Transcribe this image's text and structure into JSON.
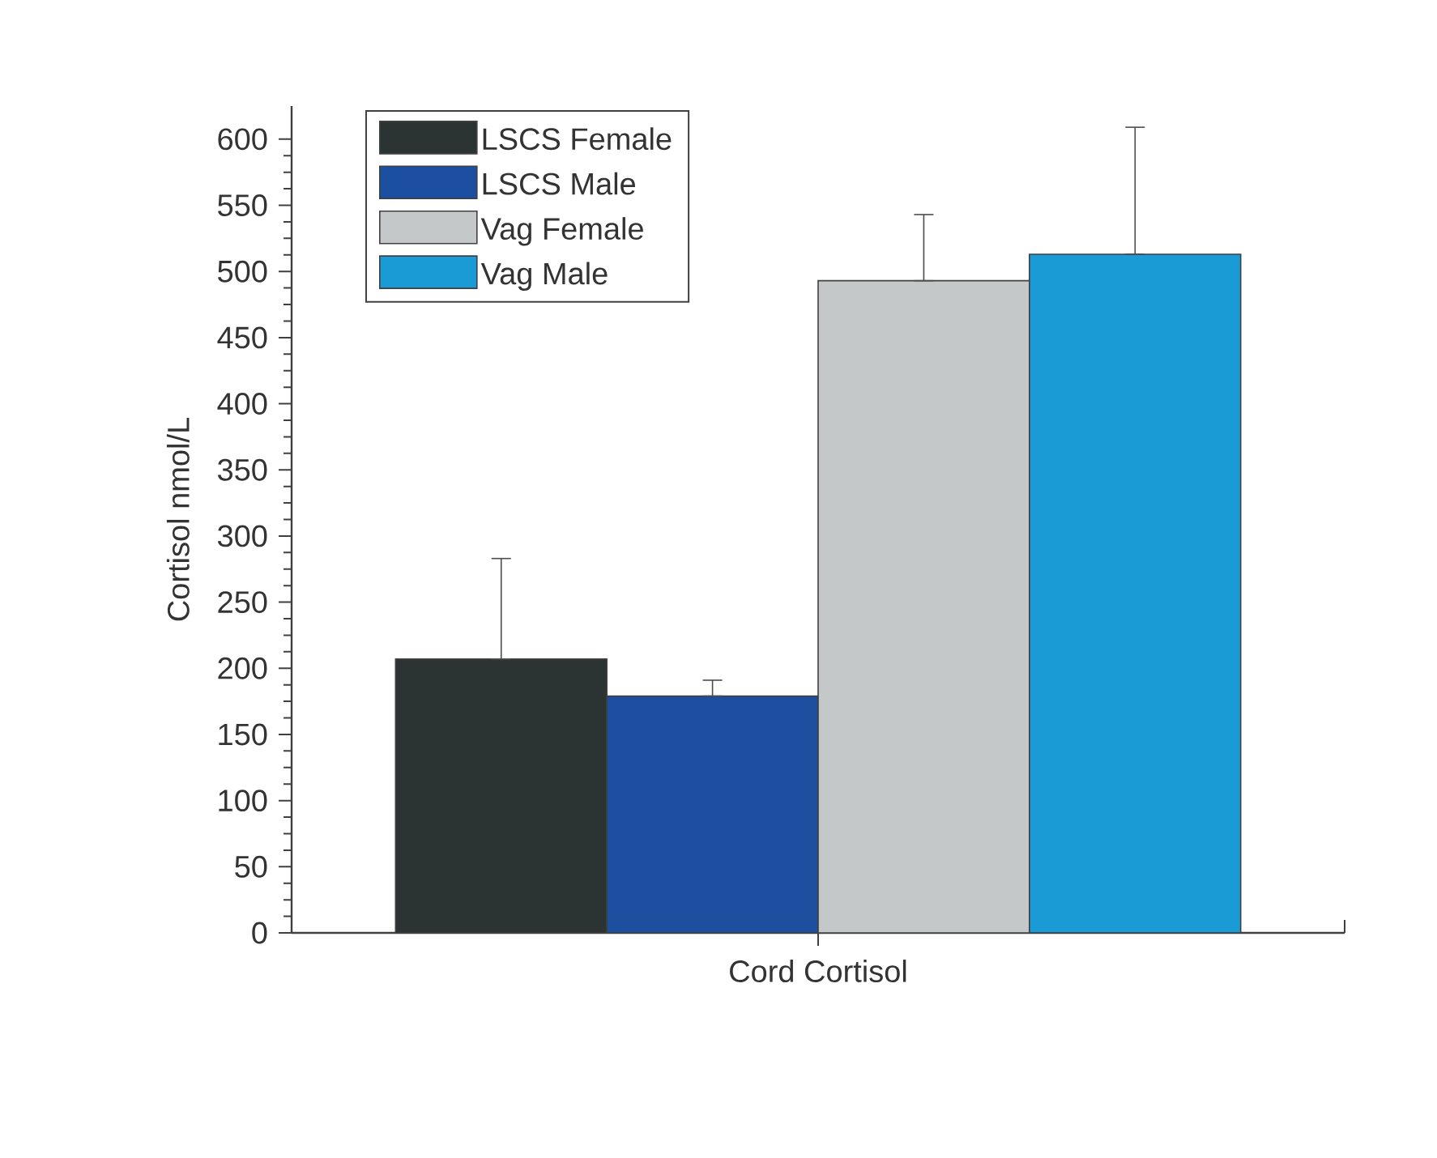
{
  "chart_data": {
    "type": "bar",
    "ylabel": "Cortisol nmol/L",
    "categories": [
      "Cord Cortisol"
    ],
    "series": [
      {
        "name": "LSCS Female",
        "color": "#2b3432",
        "values": [
          207
        ],
        "errors": [
          [
            207,
            283
          ]
        ]
      },
      {
        "name": "LSCS Male",
        "color": "#1d4fa0",
        "values": [
          179
        ],
        "errors": [
          [
            179,
            191
          ]
        ]
      },
      {
        "name": "Vag Female",
        "color": "#c4c8c8",
        "values": [
          493
        ],
        "errors": [
          [
            493,
            543
          ]
        ]
      },
      {
        "name": "Vag Male",
        "color": "#1a9bd6",
        "values": [
          513
        ],
        "errors": [
          [
            513,
            609
          ]
        ]
      }
    ],
    "ylim": [
      0,
      625
    ],
    "yticks": [
      0,
      50,
      100,
      150,
      200,
      250,
      300,
      350,
      400,
      450,
      500,
      550,
      600
    ],
    "grid": false,
    "legend": "top left"
  }
}
